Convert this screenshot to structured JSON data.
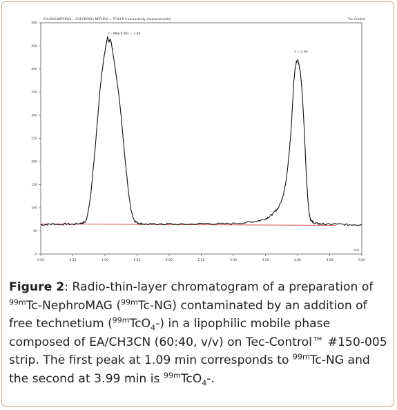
{
  "chart_data": {
    "type": "line",
    "header_left": "B:\\LOGS\\NEPHRO\\... CHECK\\99m NEPHRO + TCO4 R [radioactivity measurements]",
    "header_right": "Tec-Control",
    "x_ticks": [
      "0.00",
      "0.50",
      "1.00",
      "1.50",
      "2.00",
      "2.50",
      "3.00",
      "3.50",
      "4.00",
      "4.50",
      "5.00"
    ],
    "y_ticks": [
      "500",
      "450",
      "400",
      "350",
      "300",
      "250",
      "200",
      "150",
      "100",
      "50",
      "0"
    ],
    "xlim": [
      0,
      5
    ],
    "ylim": [
      0,
      500
    ],
    "x_unit_label": "min",
    "peaks": [
      {
        "label": "1 - 99mTc-NG = 1.09",
        "x": 1.09,
        "y": 460
      },
      {
        "label": "2 = 3.99",
        "x": 3.99,
        "y": 420
      }
    ],
    "baseline": 65,
    "series": [
      {
        "x": [
          0.0,
          0.1,
          0.2,
          0.3,
          0.4,
          0.5,
          0.6,
          0.65,
          0.7,
          0.72,
          0.75,
          0.78,
          0.8,
          0.83,
          0.86,
          0.89,
          0.92,
          0.95,
          0.98,
          1.0,
          1.02,
          1.04,
          1.06,
          1.08,
          1.1,
          1.12,
          1.14,
          1.16,
          1.18,
          1.2,
          1.22,
          1.25,
          1.28,
          1.31,
          1.34,
          1.37,
          1.4,
          1.43,
          1.46,
          1.5,
          1.55,
          1.6,
          1.7,
          1.8,
          1.9,
          2.0,
          2.2,
          2.4,
          2.6,
          2.8,
          3.0,
          3.2,
          3.3,
          3.4,
          3.5,
          3.55,
          3.6,
          3.65,
          3.7,
          3.75,
          3.78,
          3.81,
          3.84,
          3.87,
          3.9,
          3.92,
          3.94,
          3.96,
          3.98,
          4.0,
          4.02,
          4.04,
          4.06,
          4.08,
          4.1,
          4.12,
          4.14,
          4.16,
          4.18,
          4.2,
          4.23,
          4.26,
          4.3,
          4.35,
          4.4,
          4.5,
          4.6,
          4.7,
          4.8,
          4.9,
          5.0
        ],
        "y": [
          63,
          64,
          65,
          64,
          65,
          64,
          66,
          67,
          70,
          80,
          100,
          130,
          160,
          200,
          250,
          300,
          350,
          390,
          420,
          440,
          455,
          470,
          460,
          465,
          455,
          440,
          420,
          400,
          380,
          360,
          340,
          300,
          255,
          210,
          170,
          130,
          100,
          82,
          72,
          68,
          66,
          65,
          64,
          65,
          64,
          65,
          64,
          65,
          66,
          65,
          66,
          68,
          70,
          72,
          76,
          80,
          85,
          92,
          100,
          115,
          130,
          150,
          180,
          220,
          270,
          320,
          370,
          400,
          415,
          420,
          410,
          395,
          370,
          330,
          280,
          220,
          160,
          120,
          90,
          75,
          70,
          67,
          66,
          65,
          65,
          64,
          65,
          64,
          63,
          64,
          63
        ]
      }
    ]
  },
  "caption": {
    "label": "Figure 2",
    "parts": [
      ": Radio-thin-layer chromatogram of a preparation of ",
      "Tc-NephroMAG (",
      "Tc-NG) contaminated by an addition of free technetium (",
      "TcO",
      "-) in a lipophilic mobile phase composed of EA/CH3CN (60:40, v/v) on Tec-Control™ #150-005 strip. The first peak at 1.09 min corresponds to ",
      "Tc-NG and the second at 3.99 min is ",
      "TcO",
      "-."
    ],
    "sup_99m": "99m",
    "sub_4": "4"
  }
}
